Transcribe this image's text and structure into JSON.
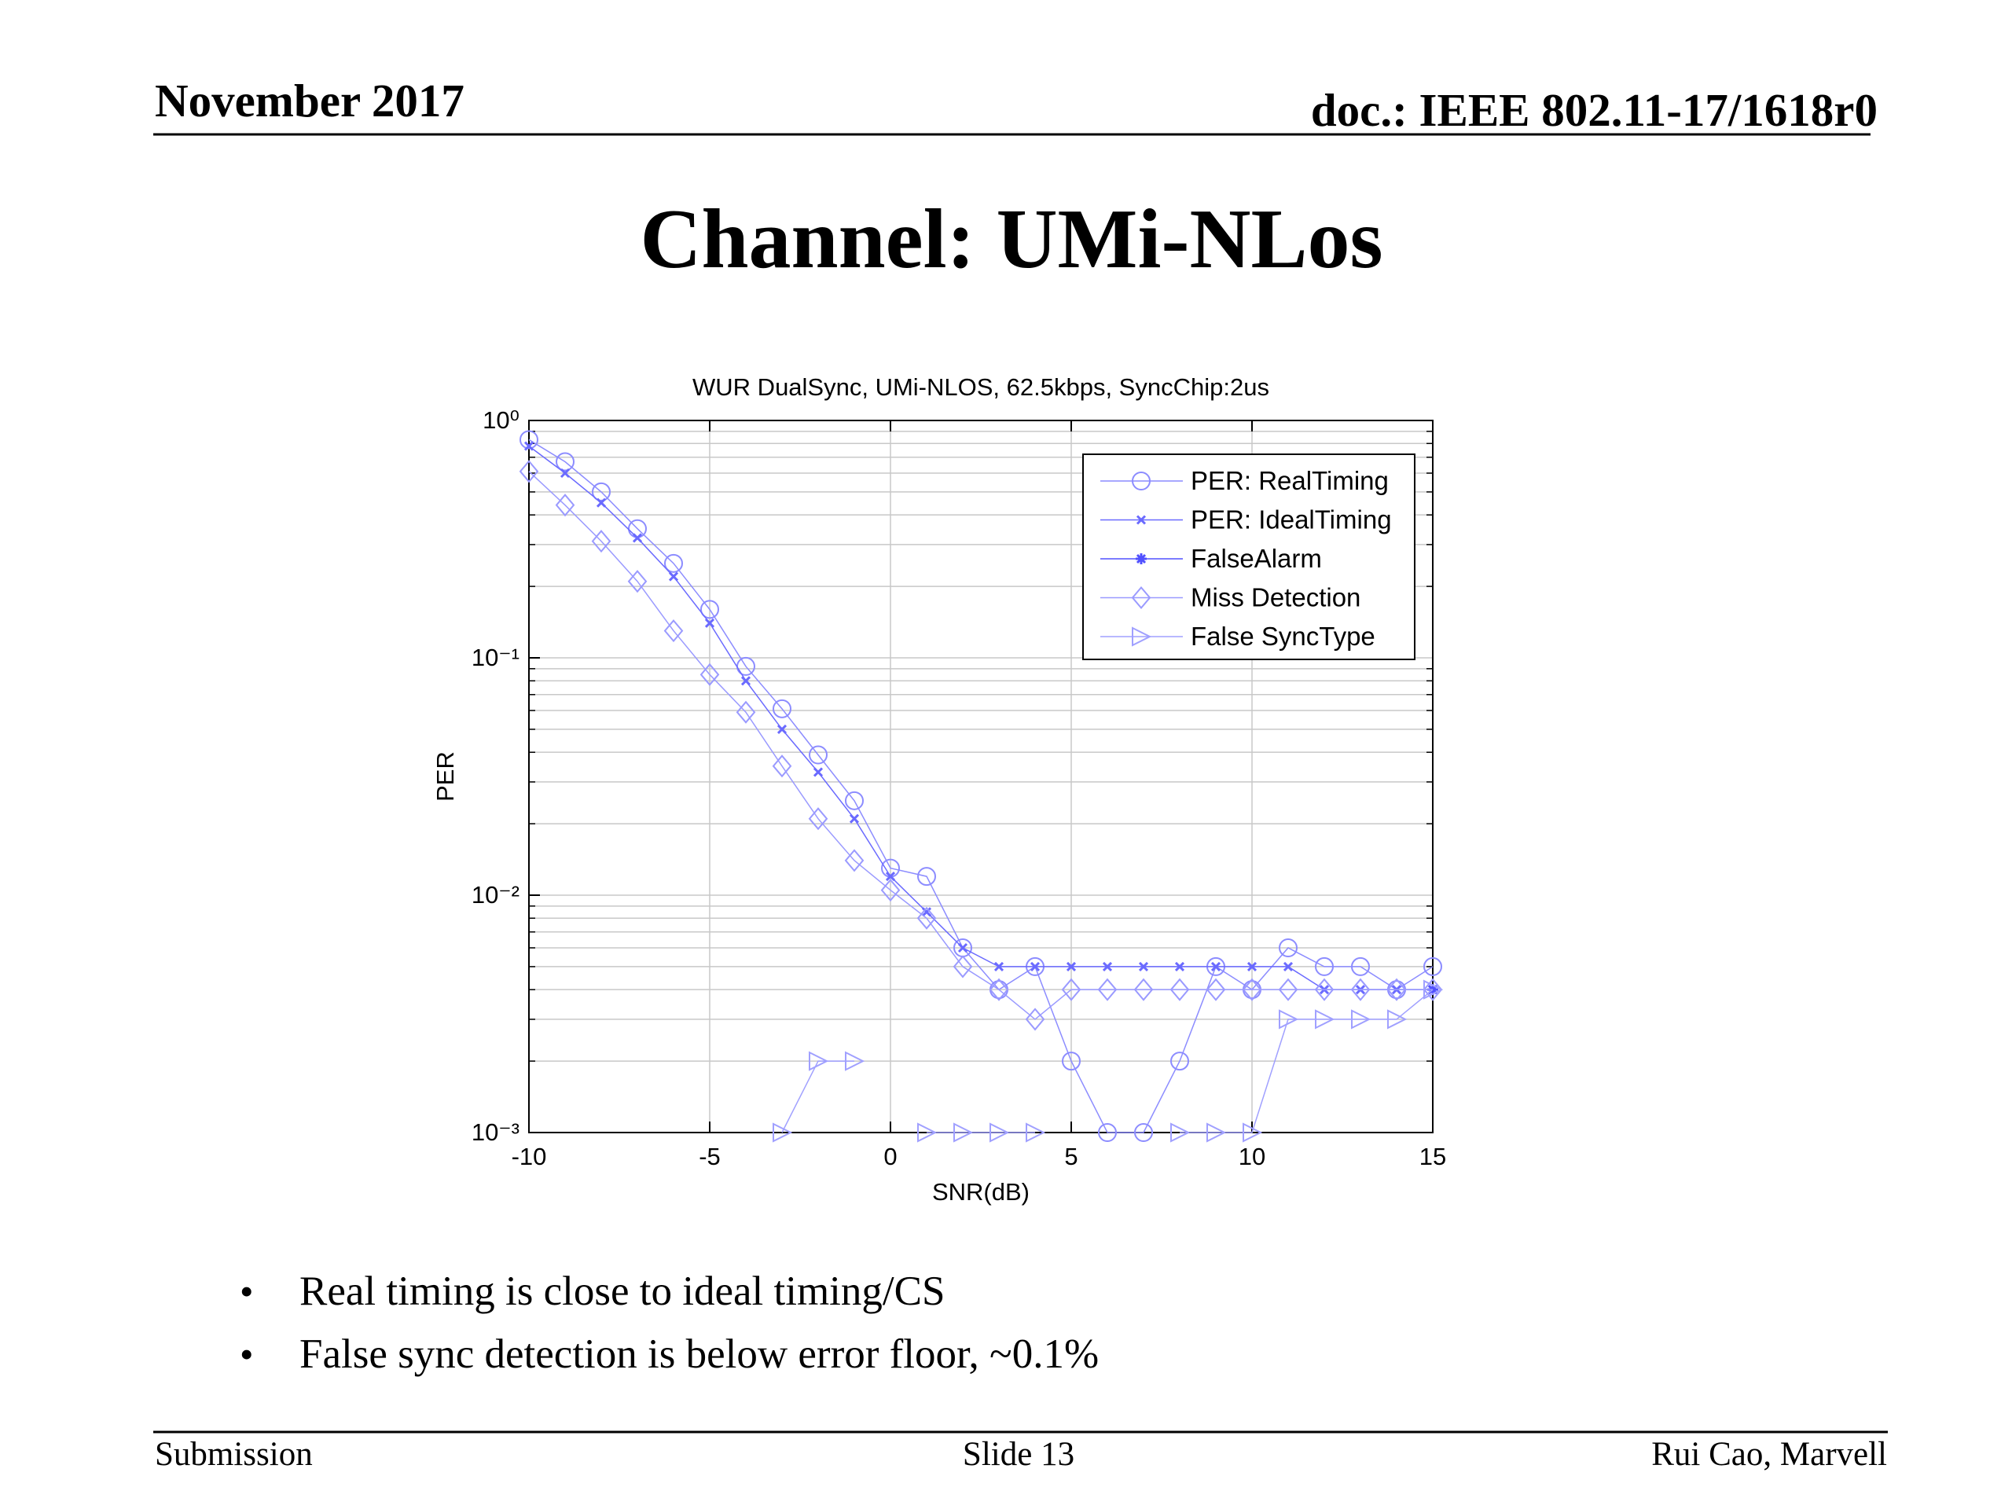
{
  "header": {
    "date": "November 2017",
    "doc": "doc.: IEEE 802.11-17/1618r0"
  },
  "title": "Channel: UMi-NLos",
  "chart_data": {
    "type": "line",
    "title": "WUR DualSync, UMi-NLOS, 62.5kbps, SyncChip:2us",
    "x_label": "SNR(dB)",
    "y_label": "PER",
    "x": [
      -10,
      -9,
      -8,
      -7,
      -6,
      -5,
      -4,
      -3,
      -2,
      -1,
      0,
      1,
      2,
      3,
      4,
      5,
      6,
      7,
      8,
      9,
      10,
      11,
      12,
      13,
      14,
      15
    ],
    "xlim": [
      -10,
      15
    ],
    "xticks": [
      -10,
      -5,
      0,
      5,
      10,
      15
    ],
    "ylim": [
      0.001,
      1
    ],
    "log_y": true,
    "grid": true,
    "legend": "upper right",
    "yticks": [
      {
        "value": 0.001,
        "label": "10⁻³"
      },
      {
        "value": 0.01,
        "label": "10⁻²"
      },
      {
        "value": 0.1,
        "label": "10⁻¹"
      },
      {
        "value": 1,
        "label": "10⁰"
      }
    ],
    "series": [
      {
        "name": "PER: RealTiming",
        "color": "#8c8cff",
        "values": [
          0.83,
          0.67,
          0.5,
          0.35,
          0.25,
          0.16,
          0.092,
          0.061,
          0.039,
          0.025,
          0.013,
          0.012,
          0.006,
          0.004,
          0.005,
          0.002,
          0.001,
          0.001,
          0.002,
          0.005,
          0.004,
          0.006,
          0.005,
          0.005,
          0.004,
          0.005
        ]
      },
      {
        "name": "PER: IdealTiming",
        "color": "#6a6aff",
        "values": [
          0.78,
          0.6,
          0.45,
          0.32,
          0.22,
          0.14,
          0.08,
          0.05,
          0.033,
          0.021,
          0.012,
          0.0085,
          0.006,
          0.005,
          0.005,
          0.005,
          0.005,
          0.005,
          0.005,
          0.005,
          0.005,
          0.005,
          0.004,
          0.004,
          0.004,
          0.004
        ]
      },
      {
        "name": "FalseAlarm",
        "color": "#5050ff",
        "values": [
          null,
          null,
          null,
          null,
          null,
          null,
          null,
          null,
          null,
          null,
          null,
          null,
          null,
          null,
          null,
          null,
          null,
          null,
          null,
          null,
          null,
          null,
          null,
          null,
          null,
          0.004
        ]
      },
      {
        "name": "Miss Detection",
        "color": "#9a9aff",
        "values": [
          0.61,
          0.44,
          0.31,
          0.21,
          0.13,
          0.085,
          0.059,
          0.035,
          0.021,
          0.014,
          0.0105,
          0.008,
          0.005,
          0.004,
          0.003,
          0.004,
          0.004,
          0.004,
          0.004,
          0.004,
          0.004,
          0.004,
          0.004,
          0.004,
          0.004,
          0.004
        ]
      },
      {
        "name": "False SyncType",
        "color": "#a0a0ff",
        "values": [
          null,
          null,
          null,
          null,
          null,
          null,
          null,
          0.001,
          0.002,
          0.002,
          null,
          0.001,
          0.001,
          0.001,
          0.001,
          null,
          null,
          null,
          0.001,
          0.001,
          0.001,
          0.003,
          0.003,
          0.003,
          0.003,
          0.004
        ]
      }
    ]
  },
  "bullets": [
    "Real timing is close to ideal timing/CS",
    "False sync detection is below error floor, ~0.1%"
  ],
  "footer": {
    "left": "Submission",
    "center": "Slide 13",
    "right": "Rui Cao, Marvell"
  }
}
